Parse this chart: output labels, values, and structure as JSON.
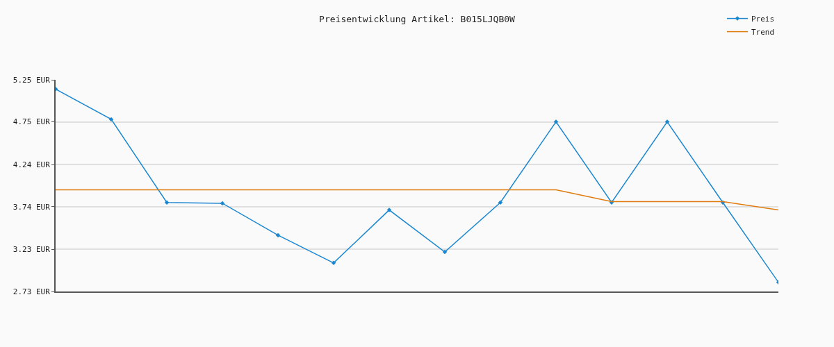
{
  "chart_data": {
    "type": "line",
    "title": "Preisentwicklung Artikel: B015LJQB0W",
    "categories": [
      null,
      null,
      null,
      null,
      null,
      null,
      null,
      null,
      null,
      null,
      null,
      null,
      null,
      null
    ],
    "series": [
      {
        "name": "Preis",
        "color": "#1a87d0",
        "values": [
          5.14,
          4.78,
          3.79,
          3.78,
          3.4,
          3.07,
          3.7,
          3.2,
          3.79,
          4.75,
          3.79,
          4.75,
          3.79,
          2.84
        ],
        "marker": "diamond"
      },
      {
        "name": "Trend",
        "color": "#e07b0f",
        "values": [
          3.94,
          3.94,
          3.94,
          3.94,
          3.94,
          3.94,
          3.94,
          3.94,
          3.94,
          3.94,
          3.8,
          3.8,
          3.8,
          3.7
        ],
        "marker": "none"
      }
    ],
    "ylim": [
      2.73,
      5.25
    ],
    "yticks": [
      {
        "value": 5.25,
        "label": "5.25 EUR"
      },
      {
        "value": 4.75,
        "label": "4.75 EUR"
      },
      {
        "value": 4.24,
        "label": "4.24 EUR"
      },
      {
        "value": 3.74,
        "label": "3.74 EUR"
      },
      {
        "value": 3.23,
        "label": "3.23 EUR"
      },
      {
        "value": 2.73,
        "label": "2.73 EUR"
      }
    ],
    "grid": "y",
    "legend": "top right",
    "line_style": "solid"
  }
}
